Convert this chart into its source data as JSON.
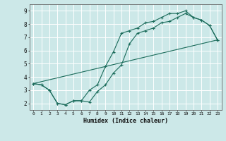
{
  "title": "",
  "xlabel": "Humidex (Indice chaleur)",
  "background_color": "#cce8e8",
  "grid_color": "#ffffff",
  "line_color": "#1a6b5a",
  "xlim": [
    -0.5,
    23.5
  ],
  "ylim": [
    1.5,
    9.5
  ],
  "xticks": [
    0,
    1,
    2,
    3,
    4,
    5,
    6,
    7,
    8,
    9,
    10,
    11,
    12,
    13,
    14,
    15,
    16,
    17,
    18,
    19,
    20,
    21,
    22,
    23
  ],
  "yticks": [
    2,
    3,
    4,
    5,
    6,
    7,
    8,
    9
  ],
  "line1_x": [
    0,
    1,
    2,
    3,
    4,
    5,
    6,
    7,
    8,
    9,
    10,
    11,
    12,
    13,
    14,
    15,
    16,
    17,
    18,
    19,
    20,
    21,
    22,
    23
  ],
  "line1_y": [
    3.5,
    3.4,
    3.0,
    2.0,
    1.9,
    2.2,
    2.2,
    2.1,
    2.9,
    3.4,
    4.3,
    4.9,
    6.5,
    7.3,
    7.5,
    7.7,
    8.1,
    8.2,
    8.5,
    8.8,
    8.5,
    8.3,
    7.9,
    6.8
  ],
  "line2_x": [
    0,
    1,
    2,
    3,
    4,
    5,
    6,
    7,
    8,
    9,
    10,
    11,
    12,
    13,
    14,
    15,
    16,
    17,
    18,
    19,
    20,
    21,
    22,
    23
  ],
  "line2_y": [
    3.5,
    3.4,
    3.0,
    2.0,
    1.9,
    2.2,
    2.2,
    3.0,
    3.4,
    4.8,
    5.9,
    7.3,
    7.5,
    7.7,
    8.1,
    8.2,
    8.5,
    8.8,
    8.8,
    9.0,
    8.5,
    8.3,
    7.9,
    6.8
  ],
  "line3_x": [
    0,
    23
  ],
  "line3_y": [
    3.5,
    6.8
  ]
}
